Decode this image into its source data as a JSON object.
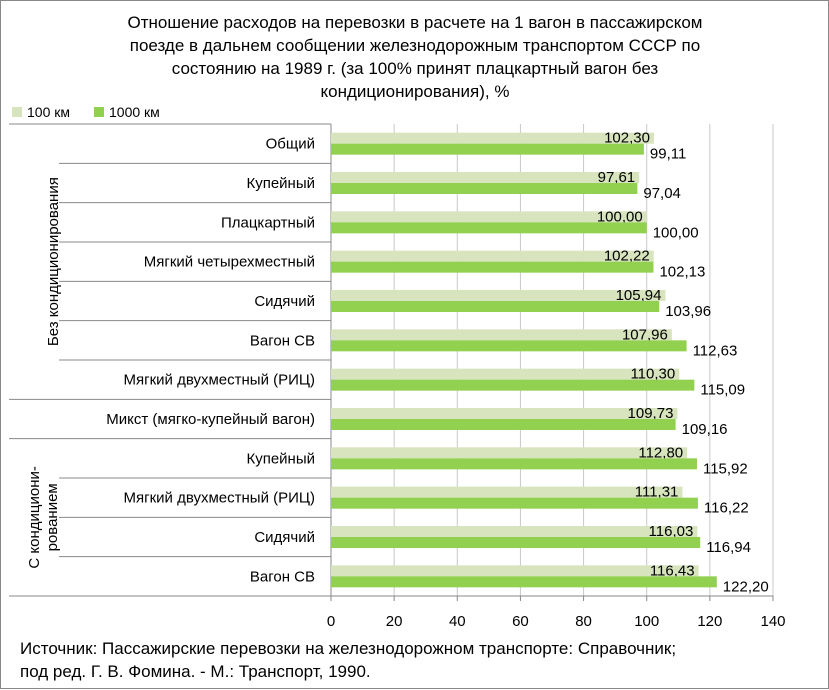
{
  "chart_data": {
    "type": "bar",
    "orientation": "horizontal",
    "title_lines": [
      "Отношение расходов на перевозки в расчете на 1 вагон в пассажирском",
      "поезде в дальнем сообщении железнодорожным транспортом  СССР по",
      "состоянию на 1989 г.  (за 100% принят плацкартный вагон без",
      "кондиционирования), %"
    ],
    "legend_position": "top-left",
    "categories": [
      "Общий",
      "Купейный",
      "Плацкартный",
      "Мягкий четырехместный",
      "Сидячий",
      "Вагон СВ",
      "Мягкий двухместный  (РИЦ)",
      "Микст (мягко-купейный  вагон)",
      "Купейный",
      "Мягкий двухместный  (РИЦ)",
      "Сидячий",
      "Вагон СВ"
    ],
    "groups": [
      {
        "label": "Без кондиционирования",
        "start": 0,
        "end": 6
      },
      {
        "label": "",
        "start": 7,
        "end": 7
      },
      {
        "label_lines": [
          "С кондициони-",
          "рованием"
        ],
        "start": 8,
        "end": 11
      }
    ],
    "series": [
      {
        "name": "100 км",
        "color": "#d7e4bd",
        "values": [
          102.3,
          97.61,
          100.0,
          102.22,
          105.94,
          107.96,
          110.3,
          109.73,
          112.8,
          111.31,
          116.03,
          116.43
        ],
        "labels": [
          "102,30",
          "97,61",
          "100,00",
          "102,22",
          "105,94",
          "107,96",
          "110,30",
          "109,73",
          "112,80",
          "111,31",
          "116,03",
          "116,43"
        ]
      },
      {
        "name": "1000 км",
        "color": "#92d050",
        "values": [
          99.11,
          97.04,
          100.0,
          102.13,
          103.96,
          112.63,
          115.09,
          109.16,
          115.92,
          116.22,
          116.94,
          122.2
        ],
        "labels": [
          "99,11",
          "97,04",
          "100,00",
          "102,13",
          "103,96",
          "112,63",
          "115,09",
          "109,16",
          "115,92",
          "116,22",
          "116,94",
          "122,20"
        ]
      }
    ],
    "xlim": [
      0,
      140
    ],
    "xticks": [
      "0",
      "20",
      "40",
      "60",
      "80",
      "100",
      "120",
      "140"
    ],
    "grid": true
  },
  "source": {
    "line1": "Источник: Пассажирские перевозки на железнодорожном транспорте: Справочник;",
    "line2": "под ред. Г. В. Фомина. - М.: Транспорт, 1990."
  }
}
